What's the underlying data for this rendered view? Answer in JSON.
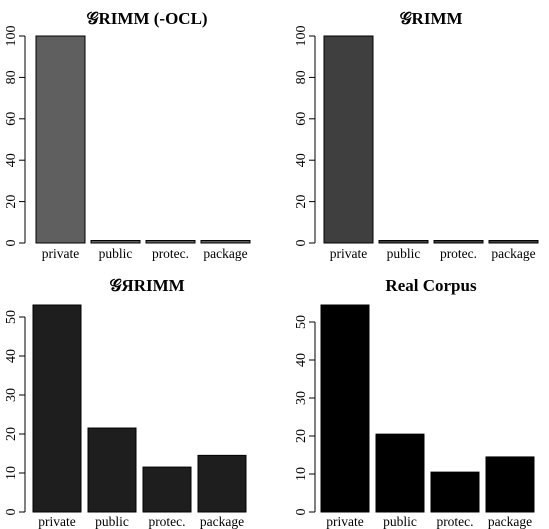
{
  "chart_data": [
    {
      "type": "bar",
      "title": "𝒢RIMM (-OCL)",
      "categories": [
        "private",
        "public",
        "protec.",
        "package"
      ],
      "values": [
        100,
        0.9,
        0.9,
        0.9
      ],
      "yticks": [
        "0",
        "20",
        "40",
        "60",
        "80",
        "100"
      ],
      "ylim": [
        0,
        100
      ],
      "color": "#5f5f5f"
    },
    {
      "type": "bar",
      "title": "𝒢RIMM",
      "categories": [
        "private",
        "public",
        "protec.",
        "package"
      ],
      "values": [
        100,
        0.9,
        0.9,
        0.9
      ],
      "yticks": [
        "0",
        "20",
        "40",
        "60",
        "80",
        "100"
      ],
      "ylim": [
        0,
        100
      ],
      "color": "#3f3f3f"
    },
    {
      "type": "bar",
      "title": "𝒢ЯRIMM",
      "categories": [
        "private",
        "public",
        "protec.",
        "package"
      ],
      "values": [
        53,
        21.5,
        11.5,
        14.5
      ],
      "yticks": [
        "0",
        "10",
        "20",
        "30",
        "40",
        "50"
      ],
      "ylim": [
        0,
        53
      ],
      "color": "#1e1e1e"
    },
    {
      "type": "bar",
      "title": "Real Corpus",
      "categories": [
        "private",
        "public",
        "protec.",
        "package"
      ],
      "values": [
        54.5,
        20.5,
        10.5,
        14.5
      ],
      "yticks": [
        "0",
        "10",
        "20",
        "30",
        "40",
        "50"
      ],
      "ylim": [
        0,
        54.5
      ],
      "color": "#000000"
    }
  ]
}
